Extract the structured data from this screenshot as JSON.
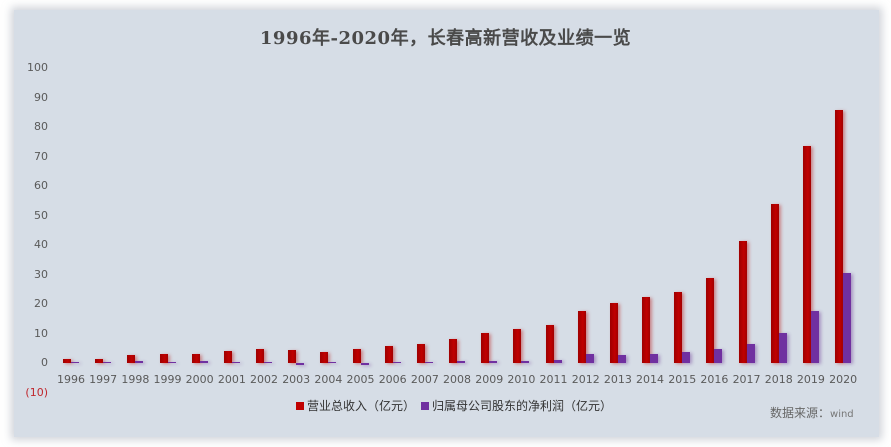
{
  "chart_data": {
    "type": "bar",
    "title": "1996年-2020年，长春高新营收及业绩一览",
    "xlabel": "",
    "ylabel": "",
    "ylim": [
      -10,
      100
    ],
    "y_ticks": [
      "100",
      "90",
      "80",
      "70",
      "60",
      "50",
      "40",
      "30",
      "20",
      "10",
      "0",
      "(10)"
    ],
    "grid": false,
    "legend_position": "bottom",
    "categories": [
      "1996",
      "1997",
      "1998",
      "1999",
      "2000",
      "2001",
      "2002",
      "2003",
      "2004",
      "2005",
      "2006",
      "2007",
      "2008",
      "2009",
      "2010",
      "2011",
      "2012",
      "2013",
      "2014",
      "2015",
      "2016",
      "2017",
      "2018",
      "2019",
      "2020"
    ],
    "series": [
      {
        "name": "营业总收入（亿元）",
        "color": "#c00000",
        "values": [
          1.4,
          1.3,
          2.8,
          3.0,
          3.2,
          4.2,
          4.8,
          4.3,
          3.7,
          4.8,
          5.8,
          6.4,
          8.2,
          10.2,
          11.5,
          12.9,
          17.7,
          20.3,
          22.3,
          24.0,
          28.9,
          41.2,
          53.8,
          73.7,
          85.7
        ]
      },
      {
        "name": "归属母公司股东的净利润（亿元）",
        "color": "#7030a0",
        "values": [
          0.5,
          0.3,
          0.6,
          0.3,
          0.6,
          0.3,
          0.3,
          -0.8,
          0.2,
          -0.4,
          0.3,
          0.3,
          0.7,
          0.7,
          0.7,
          1.1,
          3.1,
          2.8,
          3.1,
          3.7,
          4.8,
          6.4,
          10.2,
          17.6,
          30.4
        ]
      }
    ],
    "source_label": "数据来源：",
    "source_value": "wind"
  }
}
